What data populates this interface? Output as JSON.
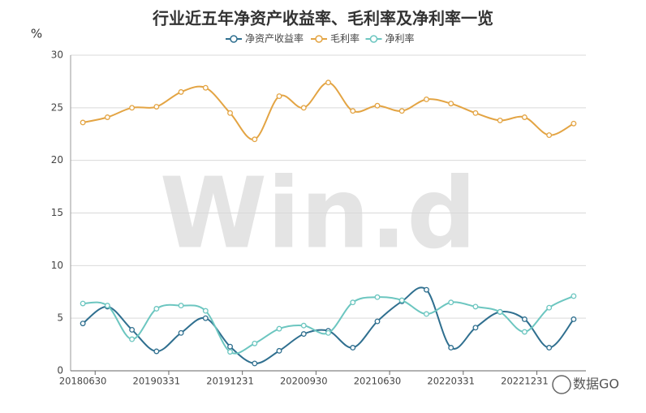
{
  "chart_data": {
    "type": "line",
    "title": "行业近五年净资产收益率、毛利率及净利率一览",
    "y_label": "%",
    "watermark": "Win.d",
    "source_badge": "数据GO",
    "categories": [
      "20180630",
      null,
      null,
      "20190331",
      null,
      null,
      "20191231",
      null,
      null,
      "20200930",
      null,
      null,
      "20210630",
      null,
      null,
      "20220331",
      null,
      null,
      "20221231",
      null,
      null
    ],
    "ylim": [
      0,
      30
    ],
    "yticks": [
      0,
      5,
      10,
      15,
      20,
      25,
      30
    ],
    "grid": true,
    "legend": "top",
    "series": [
      {
        "name": "净资产收益率",
        "color": "#2f6f8f",
        "values": [
          4.5,
          6.1,
          3.9,
          1.85,
          3.6,
          5.0,
          2.3,
          0.7,
          1.9,
          3.5,
          3.8,
          2.2,
          4.7,
          6.6,
          7.7,
          2.2,
          4.1,
          5.6,
          4.9,
          2.2,
          4.9
        ]
      },
      {
        "name": "毛利率",
        "color": "#e3a443",
        "values": [
          23.6,
          24.1,
          25.0,
          25.1,
          26.5,
          26.9,
          24.5,
          22.0,
          26.1,
          25.0,
          27.4,
          24.7,
          25.2,
          24.7,
          25.8,
          25.4,
          24.5,
          23.8,
          24.1,
          22.4,
          23.5
        ]
      },
      {
        "name": "净利率",
        "color": "#6cc6c0",
        "values": [
          6.4,
          6.2,
          3.0,
          5.9,
          6.2,
          5.7,
          1.8,
          2.6,
          4.0,
          4.3,
          3.6,
          6.5,
          7.0,
          6.7,
          5.4,
          6.5,
          6.1,
          5.6,
          3.7,
          6.0,
          7.1
        ]
      }
    ]
  }
}
